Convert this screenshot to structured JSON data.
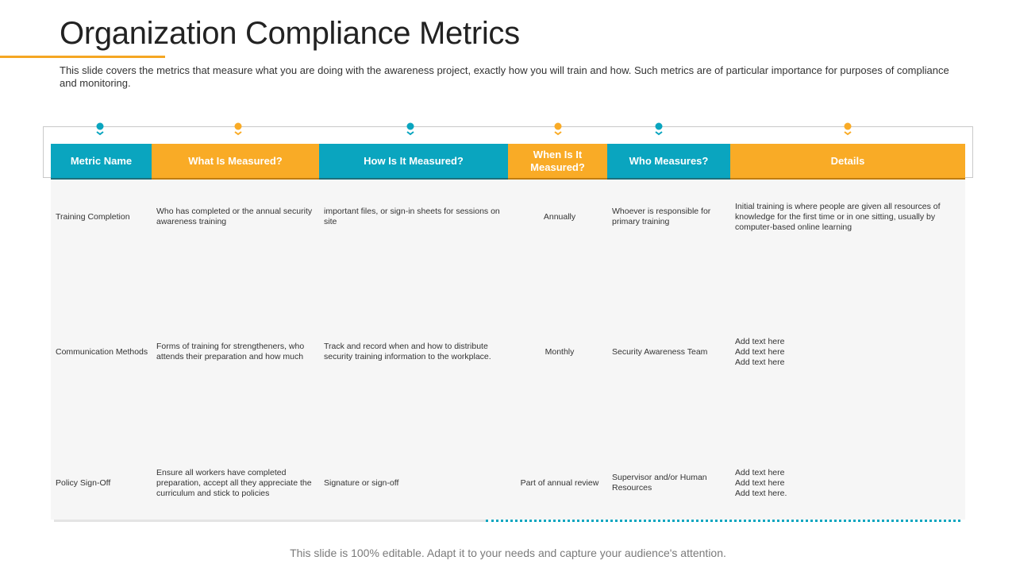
{
  "slide": {
    "title": "Organization Compliance Metrics",
    "subtitle": "This slide covers the metrics that measure what you are doing with the awareness project, exactly how you will train and how. Such metrics are of particular importance for purposes of compliance and monitoring.",
    "footer": "This slide is 100% editable. Adapt it to your needs and capture your audience's attention."
  },
  "colors": {
    "teal": "#0aa5bf",
    "orange": "#f9ab26"
  },
  "table": {
    "headers": [
      "Metric Name",
      "What Is Measured?",
      "How Is It Measured?",
      "When Is It Measured?",
      "Who Measures?",
      "Details"
    ],
    "rows": [
      {
        "metric": "Training Completion",
        "what": "Who has completed or the annual security awareness training",
        "how": "important files, or sign-in sheets for sessions on site",
        "when": "Annually",
        "who": "Whoever is responsible for primary training",
        "details": "Initial training is where people are given all resources of knowledge for the first time or in one sitting, usually by computer-based online learning"
      },
      {
        "metric": "Communication Methods",
        "what": "Forms of training for strengtheners, who attends their preparation and how much",
        "how": "Track and record when and how to distribute security training information to the workplace.",
        "when": "Monthly",
        "who": "Security Awareness Team",
        "details": "Add text here\nAdd text here\nAdd text here"
      },
      {
        "metric": "Policy Sign-Off",
        "what": "Ensure all workers have completed preparation, accept all they appreciate the curriculum and stick to policies",
        "how": "Signature or sign-off",
        "when": "Part of annual review",
        "who": "Supervisor and/or Human Resources",
        "details": "Add text here\nAdd text here\nAdd text here."
      }
    ]
  }
}
